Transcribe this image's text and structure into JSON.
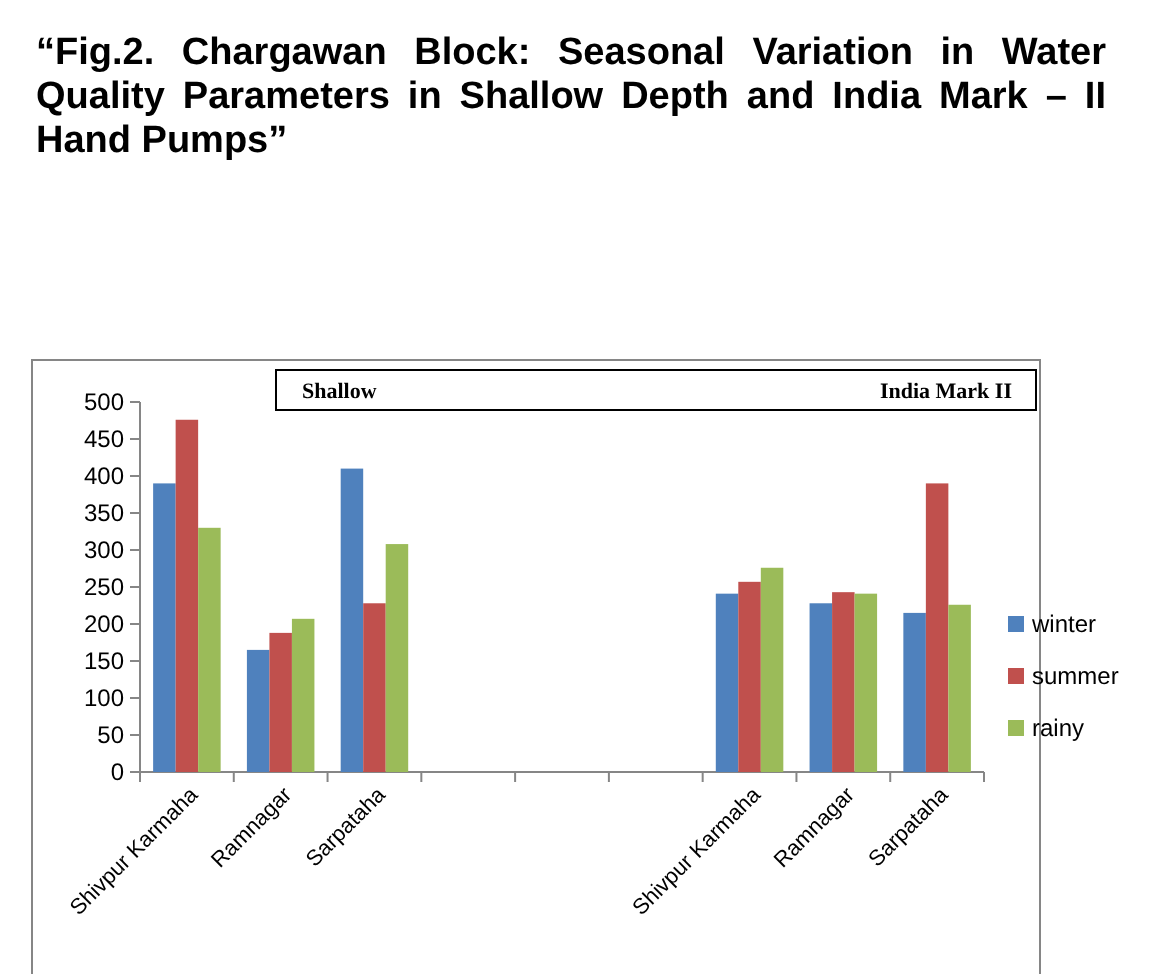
{
  "chart_data": {
    "type": "bar",
    "title": "“Fig.2. Chargawan Block: Seasonal Variation in Water Quality Parameters in Shallow Depth and India Mark – II Hand Pumps”",
    "categories": [
      "Shivpur Karmaha",
      "Ramnagar",
      "Sarpataha",
      null,
      null,
      null,
      "Shivpur Karmaha",
      "Ramnagar",
      "Sarpataha"
    ],
    "series": [
      {
        "name": "winter",
        "color": "#4f81bd",
        "values": [
          390,
          165,
          410,
          null,
          null,
          null,
          241,
          228,
          215
        ]
      },
      {
        "name": "summer",
        "color": "#c0504d",
        "values": [
          476,
          188,
          228,
          null,
          null,
          null,
          257,
          243,
          390
        ]
      },
      {
        "name": "rainy",
        "color": "#9bbb59",
        "values": [
          330,
          207,
          308,
          null,
          null,
          null,
          276,
          241,
          226
        ]
      }
    ],
    "ylim": [
      0,
      500
    ],
    "yticks": [
      0,
      50,
      100,
      150,
      200,
      250,
      300,
      350,
      400,
      450,
      500
    ],
    "grid": false,
    "legend": "right",
    "annotations": [
      "Shallow",
      "India Mark II"
    ]
  }
}
